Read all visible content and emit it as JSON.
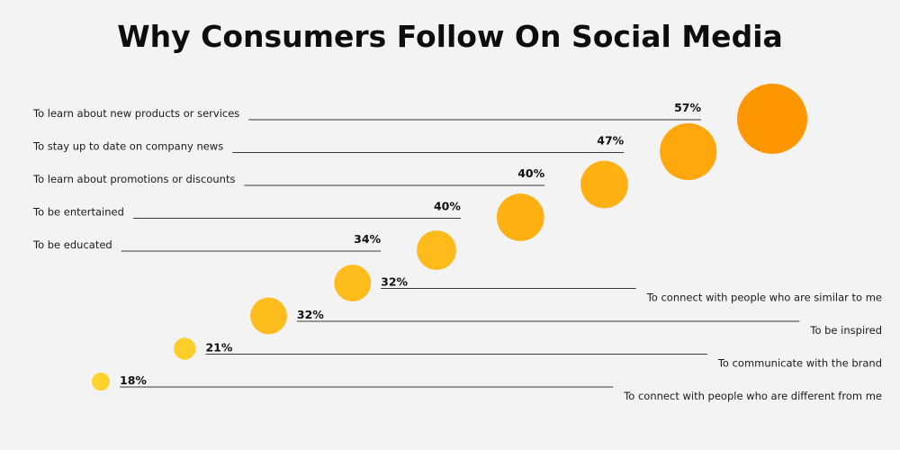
{
  "chart_data": {
    "type": "scatter",
    "title": "Why Consumers Follow On Social Media",
    "unit": "%",
    "categories": [
      "To learn about new products or services",
      "To stay up to date on company news",
      "To learn about promotions or discounts",
      "To be entertained",
      "To be educated",
      "To connect with people who are similar to me",
      "To be inspired",
      "To communicate with the brand",
      "To connect with people who are different from me"
    ],
    "values": [
      57,
      47,
      40,
      40,
      34,
      32,
      32,
      21,
      18
    ],
    "value_labels": [
      "57%",
      "47%",
      "40%",
      "40%",
      "34%",
      "32%",
      "32%",
      "21%",
      "18%"
    ],
    "label_side": [
      "left",
      "left",
      "left",
      "left",
      "left",
      "right",
      "right",
      "right",
      "right"
    ],
    "colors": {
      "low": "#ffd22e",
      "high": "#ff9800",
      "background": "#f3f3f3"
    }
  }
}
